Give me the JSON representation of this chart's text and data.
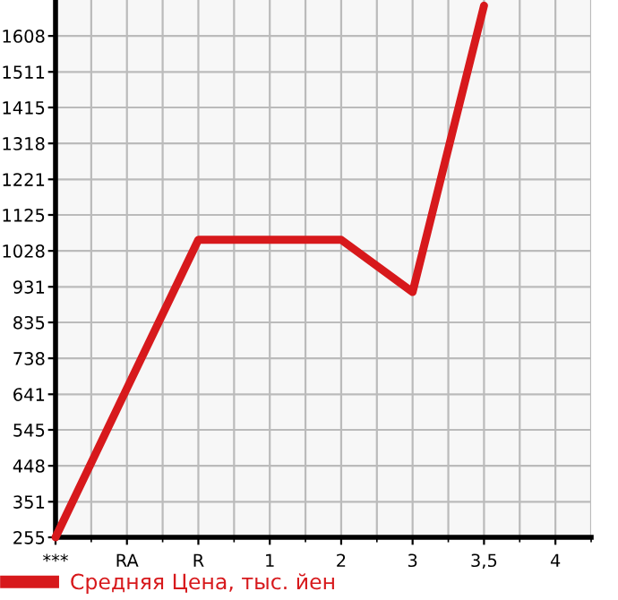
{
  "chart_data": {
    "type": "line",
    "categories": [
      "***",
      "RA",
      "R",
      "1",
      "2",
      "3",
      "3,5",
      "4"
    ],
    "series": [
      {
        "name": "Средняя Цена, тыс. йен",
        "color": "#d7191c",
        "values": [
          255,
          657,
          1058,
          1058,
          1058,
          917,
          1690,
          null
        ]
      }
    ],
    "ylim": [
      255,
      1705
    ],
    "yticks": [
      255,
      351,
      448,
      545,
      641,
      738,
      835,
      931,
      1028,
      1125,
      1221,
      1318,
      1415,
      1511,
      1608
    ],
    "grid": true,
    "legend": "bottom",
    "marker": "none",
    "line_style": "solid"
  }
}
